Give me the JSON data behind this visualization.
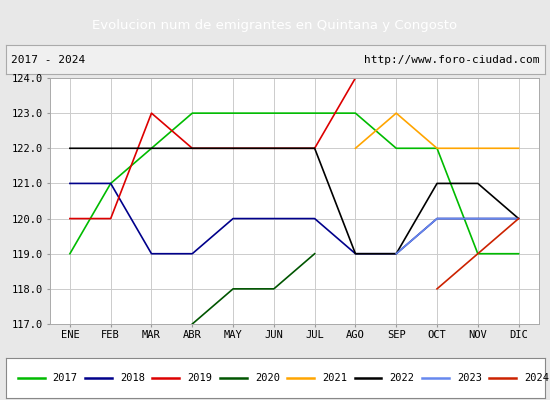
{
  "title": "Evolucion num de emigrantes en Quintana y Congosto",
  "subtitle_left": "2017 - 2024",
  "subtitle_right": "http://www.foro-ciudad.com",
  "months": [
    "ENE",
    "FEB",
    "MAR",
    "ABR",
    "MAY",
    "JUN",
    "JUL",
    "AGO",
    "SEP",
    "OCT",
    "NOV",
    "DIC"
  ],
  "ylim": [
    117.0,
    124.0
  ],
  "yticks": [
    117.0,
    118.0,
    119.0,
    120.0,
    121.0,
    122.0,
    123.0,
    124.0
  ],
  "series": {
    "2017": {
      "color": "#00bb00",
      "data": [
        119,
        121,
        122,
        123,
        123,
        123,
        123,
        123,
        122,
        122,
        119,
        119
      ]
    },
    "2018": {
      "color": "#00008b",
      "data": [
        121,
        121,
        119,
        119,
        120,
        120,
        120,
        119,
        119,
        120,
        120,
        120
      ]
    },
    "2019": {
      "color": "#dd0000",
      "data": [
        120,
        120,
        123,
        122,
        122,
        122,
        122,
        124,
        null,
        null,
        null,
        null
      ]
    },
    "2020": {
      "color": "#005500",
      "data": [
        null,
        null,
        null,
        117,
        118,
        118,
        119,
        null,
        null,
        null,
        null,
        null
      ]
    },
    "2021": {
      "color": "#ffa500",
      "data": [
        null,
        null,
        null,
        null,
        null,
        null,
        null,
        122,
        123,
        122,
        122,
        122
      ]
    },
    "2022": {
      "color": "#000000",
      "data": [
        122,
        122,
        122,
        122,
        122,
        122,
        122,
        119,
        119,
        121,
        121,
        120
      ]
    },
    "2023": {
      "color": "#6688ee",
      "data": [
        null,
        null,
        null,
        null,
        null,
        null,
        null,
        null,
        119,
        120,
        120,
        120
      ]
    },
    "2024": {
      "color": "#cc2200",
      "data": [
        null,
        null,
        null,
        null,
        null,
        null,
        null,
        null,
        null,
        118,
        119,
        120
      ]
    }
  },
  "background_color": "#e8e8e8",
  "plot_bg_color": "#ffffff",
  "title_bg_color": "#5b8dd9",
  "title_color": "#ffffff",
  "grid_color": "#cccccc",
  "subtitle_box_color": "#f0f0f0"
}
